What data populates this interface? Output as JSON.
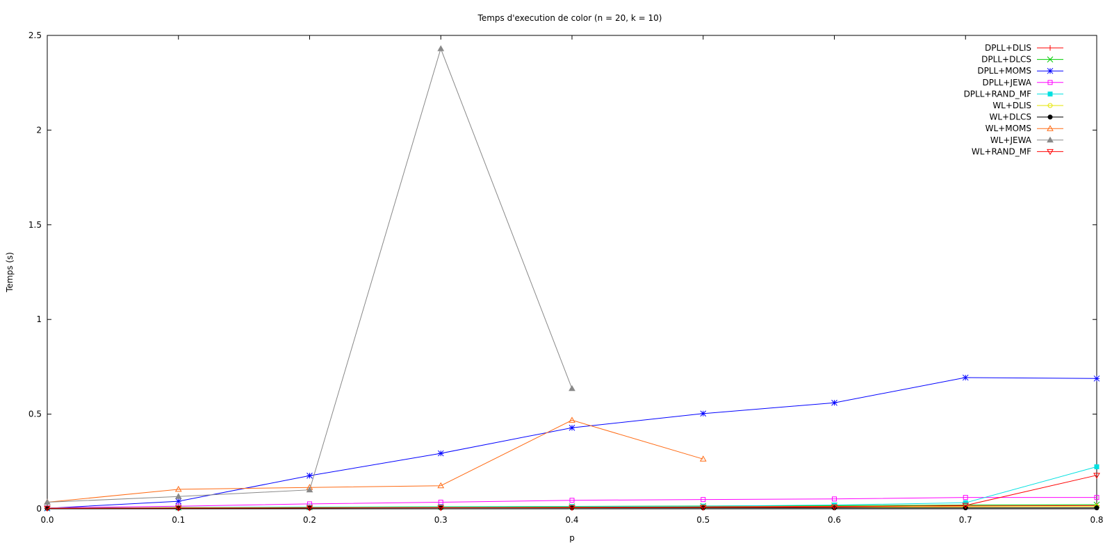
{
  "chart_data": {
    "type": "line",
    "title": "Temps d'execution de color (n = 20, k = 10)",
    "xlabel": "p",
    "ylabel": "Temps (s)",
    "xlim": [
      0,
      0.8
    ],
    "ylim": [
      0,
      2.5
    ],
    "xticks": [
      "0.0",
      "0.1",
      "0.2",
      "0.3",
      "0.4",
      "0.5",
      "0.6",
      "0.7",
      "0.8"
    ],
    "xtick_values": [
      0,
      0.1,
      0.2,
      0.3,
      0.4,
      0.5,
      0.6,
      0.7,
      0.8
    ],
    "yticks": [
      "0",
      "0.5",
      "1",
      "1.5",
      "2",
      "2.5"
    ],
    "ytick_values": [
      0,
      0.5,
      1,
      1.5,
      2,
      2.5
    ],
    "grid": false,
    "legend_position": "top-right",
    "series": [
      {
        "name": "DPLL+DLIS",
        "color": "#ff0000",
        "marker": "plus",
        "x": [
          0,
          0.1,
          0.2,
          0.3,
          0.4,
          0.5,
          0.6,
          0.7,
          0.8
        ],
        "y": [
          0.002,
          0.005,
          0.006,
          0.008,
          0.01,
          0.011,
          0.013,
          0.015,
          0.017
        ]
      },
      {
        "name": "DPLL+DLCS",
        "color": "#00cc00",
        "marker": "cross",
        "x": [
          0,
          0.1,
          0.2,
          0.3,
          0.4,
          0.5,
          0.6,
          0.7,
          0.8
        ],
        "y": [
          0.003,
          0.007,
          0.009,
          0.011,
          0.013,
          0.015,
          0.017,
          0.02,
          0.022
        ]
      },
      {
        "name": "DPLL+MOMS",
        "color": "#0000ff",
        "marker": "star",
        "x": [
          0,
          0.1,
          0.2,
          0.3,
          0.4,
          0.5,
          0.6,
          0.7,
          0.8
        ],
        "y": [
          0.003,
          0.04,
          0.175,
          0.293,
          0.428,
          0.503,
          0.56,
          0.693,
          0.688
        ]
      },
      {
        "name": "DPLL+JEWA",
        "color": "#ff00ff",
        "marker": "square",
        "x": [
          0,
          0.1,
          0.2,
          0.3,
          0.4,
          0.5,
          0.6,
          0.7,
          0.8
        ],
        "y": [
          0.005,
          0.014,
          0.026,
          0.035,
          0.045,
          0.049,
          0.052,
          0.06,
          0.06
        ]
      },
      {
        "name": "DPLL+RAND_MF",
        "color": "#00e0e0",
        "marker": "filled-square",
        "x": [
          0,
          0.1,
          0.2,
          0.3,
          0.4,
          0.5,
          0.6,
          0.7,
          0.8
        ],
        "y": [
          0.004,
          0.006,
          0.008,
          0.01,
          0.012,
          0.014,
          0.02,
          0.032,
          0.222
        ]
      },
      {
        "name": "WL+DLIS",
        "color": "#e6e600",
        "marker": "circle",
        "x": [
          0,
          0.1,
          0.2,
          0.3,
          0.4,
          0.5,
          0.6,
          0.7,
          0.8
        ],
        "y": [
          0.003,
          0.005,
          0.006,
          0.007,
          0.008,
          0.009,
          0.01,
          0.011,
          0.012
        ]
      },
      {
        "name": "WL+DLCS",
        "color": "#000000",
        "marker": "filled-circle",
        "x": [
          0,
          0.1,
          0.2,
          0.3,
          0.4,
          0.5,
          0.6,
          0.7,
          0.8
        ],
        "y": [
          0.002,
          0.003,
          0.004,
          0.005,
          0.005,
          0.005,
          0.005,
          0.005,
          0.005
        ]
      },
      {
        "name": "WL+MOMS",
        "color": "#ff6a13",
        "marker": "triangle",
        "x": [
          0,
          0.1,
          0.2,
          0.3,
          0.4,
          0.5
        ],
        "y": [
          0.035,
          0.103,
          0.113,
          0.122,
          0.468,
          0.263
        ]
      },
      {
        "name": "WL+JEWA",
        "color": "#888888",
        "marker": "filled-triangle",
        "x": [
          0,
          0.1,
          0.2,
          0.3,
          0.4
        ],
        "y": [
          0.035,
          0.065,
          0.1,
          2.43,
          0.635
        ]
      },
      {
        "name": "WL+RAND_MF",
        "color": "#ff0000",
        "marker": "triangle-down",
        "x": [
          0,
          0.1,
          0.2,
          0.3,
          0.4,
          0.5,
          0.6,
          0.7,
          0.8
        ],
        "y": [
          0.003,
          0.004,
          0.005,
          0.006,
          0.007,
          0.008,
          0.01,
          0.018,
          0.177
        ]
      }
    ]
  }
}
